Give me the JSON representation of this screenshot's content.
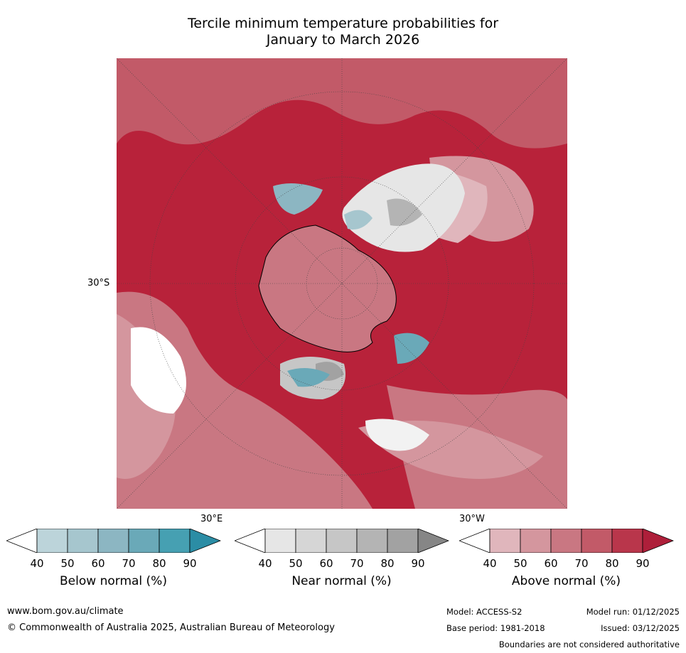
{
  "title_line1": "Tercile minimum temperature probabilities for",
  "title_line2": "January to March 2026",
  "map_labels": {
    "lat": "30°S",
    "lon_east": "30°E",
    "lon_west": "30°W"
  },
  "colorbars": [
    {
      "name": "below",
      "label": "Below normal (%)",
      "ticks": [
        "40",
        "50",
        "60",
        "70",
        "80",
        "90"
      ],
      "colors": [
        "#ffffff",
        "#bcd4da",
        "#a6c6ce",
        "#8cb6c2",
        "#6aa9b8",
        "#46a0b2",
        "#2b8da5"
      ]
    },
    {
      "name": "near",
      "label": "Near normal (%)",
      "ticks": [
        "40",
        "50",
        "60",
        "70",
        "80",
        "90"
      ],
      "colors": [
        "#ffffff",
        "#e6e6e6",
        "#d6d6d6",
        "#c6c6c6",
        "#b4b4b4",
        "#a2a2a2",
        "#868686"
      ]
    },
    {
      "name": "above",
      "label": "Above normal (%)",
      "ticks": [
        "40",
        "50",
        "60",
        "70",
        "80",
        "90"
      ],
      "colors": [
        "#ffffff",
        "#e0b6bc",
        "#d4969e",
        "#c97782",
        "#c25a68",
        "#b9364b",
        "#ae1f3a"
      ]
    }
  ],
  "footer": {
    "url": "www.bom.gov.au/climate",
    "copyright": "© Commonwealth of Australia 2025, Australian Bureau of Meteorology",
    "model": "Model: ACCESS-S2",
    "model_run": "Model run: 01/12/2025",
    "base_period": "Base period: 1981-2018",
    "issued": "Issued: 03/12/2025",
    "disclaimer": "Boundaries are not considered authoritative"
  }
}
